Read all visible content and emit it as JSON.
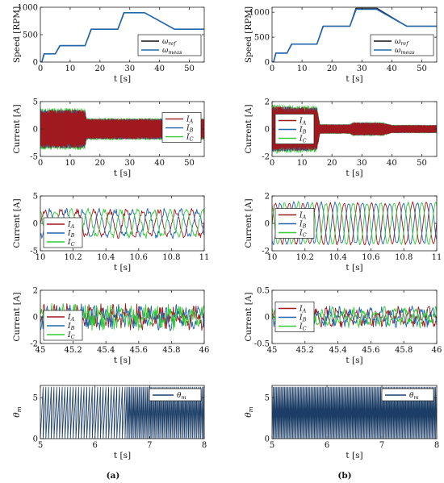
{
  "colors": {
    "ref": "#111111",
    "meas": "#2166ac",
    "IA": "#a0191e",
    "IB": "#2166ac",
    "IC": "#33cc33",
    "theta": "#1c3d66"
  },
  "panel_labels": [
    "(a)",
    "(b)"
  ],
  "chart_data": [
    {
      "id": "a-speed",
      "type": "line",
      "col": 0,
      "row": 0,
      "kind": "speed",
      "xlabel": "t [s]",
      "ylabel": "Speed [RPM]",
      "xlim": [
        0,
        55
      ],
      "ylim": [
        0,
        1000
      ],
      "xticks": [
        0,
        10,
        20,
        30,
        40,
        50
      ],
      "yticks": [
        0,
        500,
        1000
      ],
      "legend": [
        "ω_ref",
        "ω_meas"
      ],
      "legend_position": "middle-right",
      "series": [
        {
          "name": "ω_ref",
          "color": "ref",
          "x": [
            0,
            0.5,
            1.2,
            5,
            6.5,
            15,
            17,
            26,
            28,
            35,
            45,
            55
          ],
          "y": [
            0,
            0,
            150,
            150,
            300,
            300,
            600,
            600,
            900,
            900,
            600,
            600
          ]
        },
        {
          "name": "ω_meas",
          "color": "meas",
          "x": [
            0,
            0.5,
            1.3,
            5,
            6.6,
            15,
            17.1,
            26,
            28.1,
            35,
            45,
            55
          ],
          "y": [
            0,
            0,
            150,
            150,
            300,
            300,
            600,
            600,
            900,
            900,
            600,
            600
          ]
        }
      ]
    },
    {
      "id": "b-speed",
      "type": "line",
      "col": 1,
      "row": 0,
      "kind": "speed",
      "xlabel": "t [s]",
      "ylabel": "Speed [RPM]",
      "xlim": [
        0,
        55
      ],
      "ylim": [
        0,
        1100
      ],
      "xticks": [
        0,
        10,
        20,
        30,
        40,
        50
      ],
      "yticks": [
        0,
        500,
        1000
      ],
      "legend": [
        "ω_ref",
        "ω_meas"
      ],
      "legend_position": "middle-right",
      "series": [
        {
          "name": "ω_ref",
          "color": "ref",
          "x": [
            0,
            0.5,
            1.2,
            5,
            6.5,
            15,
            17,
            26,
            28,
            35,
            45,
            55
          ],
          "y": [
            0,
            0,
            180,
            180,
            360,
            360,
            720,
            720,
            1080,
            1080,
            720,
            720
          ]
        },
        {
          "name": "ω_meas",
          "color": "meas",
          "x": [
            0,
            0.5,
            1.3,
            5,
            6.6,
            15,
            17.1,
            26,
            28.1,
            35,
            45,
            55
          ],
          "y": [
            0,
            0,
            180,
            180,
            360,
            360,
            720,
            720,
            1060,
            1060,
            720,
            720
          ]
        }
      ]
    },
    {
      "id": "a-cur-full",
      "type": "line",
      "col": 0,
      "row": 1,
      "kind": "current-full",
      "xlabel": "t [s]",
      "ylabel": "Current [A]",
      "xlim": [
        0,
        55
      ],
      "ylim": [
        -5,
        5
      ],
      "xticks": [
        0,
        10,
        20,
        30,
        40,
        50
      ],
      "yticks": [
        -5,
        0,
        5
      ],
      "legend": [
        "I_A",
        "I_B",
        "I_C"
      ],
      "legend_position": "middle-right",
      "envelope": {
        "t": [
          0,
          15,
          15.5,
          55
        ],
        "amp": [
          3.8,
          3.8,
          2.0,
          2.0
        ]
      }
    },
    {
      "id": "b-cur-full",
      "type": "line",
      "col": 1,
      "row": 1,
      "kind": "current-full",
      "xlabel": "t [s]",
      "ylabel": "Current [A]",
      "xlim": [
        0,
        55
      ],
      "ylim": [
        -2,
        2
      ],
      "xticks": [
        0,
        10,
        20,
        30,
        40,
        50
      ],
      "yticks": [
        -2,
        0,
        2
      ],
      "legend": [
        "I_A",
        "I_B",
        "I_C"
      ],
      "legend_position": "middle-left",
      "envelope": {
        "t": [
          0,
          15,
          16,
          26,
          27,
          37,
          40,
          55
        ],
        "amp": [
          1.8,
          1.7,
          0.35,
          0.35,
          0.5,
          0.5,
          0.3,
          0.3
        ]
      }
    },
    {
      "id": "a-cur-zoom1",
      "type": "line",
      "col": 0,
      "row": 2,
      "kind": "current-zoom",
      "xlabel": "t [s]",
      "ylabel": "Current [A]",
      "xlim": [
        10,
        11
      ],
      "ylim": [
        -5,
        5
      ],
      "xticks": [
        10,
        10.2,
        10.4,
        10.6,
        10.8,
        11
      ],
      "yticks": [
        -5,
        0,
        5
      ],
      "legend": [
        "I_A",
        "I_B",
        "I_C"
      ],
      "legend_position": "bottom-left",
      "amplitude": 2.3,
      "cycles": 10,
      "noise": 0.5
    },
    {
      "id": "b-cur-zoom1",
      "type": "line",
      "col": 1,
      "row": 2,
      "kind": "current-zoom",
      "xlabel": "t [s]",
      "ylabel": "Current [A]",
      "xlim": [
        10,
        11
      ],
      "ylim": [
        -2,
        2
      ],
      "xticks": [
        10,
        10.2,
        10.4,
        10.6,
        10.8,
        11
      ],
      "yticks": [
        -2,
        0,
        2
      ],
      "legend": [
        "I_A",
        "I_B",
        "I_C"
      ],
      "legend_position": "middle-left",
      "amplitude": 1.5,
      "cycles": 12,
      "noise": 0.1
    },
    {
      "id": "a-cur-zoom2",
      "type": "line",
      "col": 0,
      "row": 3,
      "kind": "current-noisy",
      "xlabel": "t [s]",
      "ylabel": "Current [A]",
      "xlim": [
        45,
        46
      ],
      "ylim": [
        -2,
        2
      ],
      "xticks": [
        45,
        45.2,
        45.4,
        45.6,
        45.8,
        46
      ],
      "yticks": [
        -2,
        0,
        2
      ],
      "legend": [
        "I_A",
        "I_B",
        "I_C"
      ],
      "legend_position": "bottom-left",
      "amplitude": 0.45,
      "cycles": 14,
      "noise": 0.6
    },
    {
      "id": "b-cur-zoom2",
      "type": "line",
      "col": 1,
      "row": 3,
      "kind": "current-noisy",
      "xlabel": "t [s]",
      "ylabel": "Current [A]",
      "xlim": [
        45,
        46
      ],
      "ylim": [
        -0.5,
        0.5
      ],
      "xticks": [
        45,
        45.2,
        45.4,
        45.6,
        45.8,
        46
      ],
      "yticks": [
        -0.5,
        0,
        0.5
      ],
      "legend": [
        "I_A",
        "I_B",
        "I_C"
      ],
      "legend_position": "middle-left",
      "amplitude": 0.12,
      "cycles": 16,
      "noise": 0.09
    },
    {
      "id": "a-theta",
      "type": "line",
      "col": 0,
      "row": 4,
      "kind": "theta",
      "xlabel": "t [s]",
      "ylabel": "θ_m",
      "xlim": [
        5,
        8
      ],
      "ylim": [
        0,
        6.5
      ],
      "xticks": [
        5,
        6,
        7,
        8
      ],
      "yticks": [
        0,
        5
      ],
      "legend": [
        "θ_m"
      ],
      "legend_position": "top-right",
      "sawtooth": {
        "t": [
          5,
          6.5,
          6.6,
          8
        ],
        "periods_per_s": [
          20,
          20,
          40,
          40
        ],
        "peak": 6.28
      }
    },
    {
      "id": "b-theta",
      "type": "line",
      "col": 1,
      "row": 4,
      "kind": "theta",
      "xlabel": "t [s]",
      "ylabel": "θ_m",
      "xlim": [
        5,
        8
      ],
      "ylim": [
        0,
        6.5
      ],
      "xticks": [
        5,
        6,
        7,
        8
      ],
      "yticks": [
        0,
        5
      ],
      "legend": [
        "θ_m"
      ],
      "legend_position": "top-right",
      "sawtooth": {
        "t": [
          5,
          8
        ],
        "periods_per_s": [
          48,
          48
        ],
        "peak": 6.28
      }
    }
  ]
}
